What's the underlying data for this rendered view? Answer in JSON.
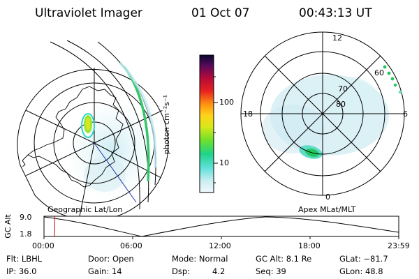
{
  "header": {
    "instrument": "Ultraviolet Imager",
    "date": "01 Oct 07",
    "time": "00:43:13 UT"
  },
  "colorbar": {
    "unit_label": "photon cm⁻²s⁻¹",
    "ticks": [
      "100",
      "10"
    ]
  },
  "left_panel": {
    "caption": "Geographic Lat/Lon"
  },
  "right_panel": {
    "caption": "Apex MLat/MLT",
    "mlt_labels": {
      "top": "12",
      "left": "18",
      "right": "6",
      "bottom": "0"
    },
    "lat_labels": [
      "60",
      "70",
      "80"
    ]
  },
  "altitude_plot": {
    "ylabel": "GC Alt",
    "yticks": [
      "9.0",
      "1.8"
    ],
    "xticks": [
      "00:00",
      "06:00",
      "12:00",
      "18:00",
      "23:59"
    ],
    "current_time_marker_hours": 0.72
  },
  "status": {
    "flt": "Flt: LBHL",
    "door": "Door: Open",
    "mode": "Mode: Normal",
    "gc_alt": "GC Alt: 8.1 Re",
    "glat": "GLat: −81.7",
    "ip": "IP: 36.0",
    "gain": "Gain: 14",
    "dsp_label": "Dsp:",
    "dsp_value": "4.2",
    "seq": "Seq: 39",
    "glon": "GLon:  48.8"
  },
  "colors": {
    "marker": "#cc0000",
    "limb": "#22c55e",
    "grid": "#000000"
  }
}
